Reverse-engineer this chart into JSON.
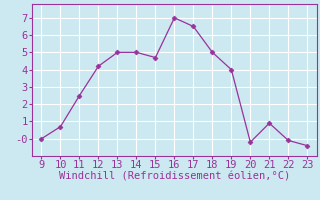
{
  "x": [
    9,
    10,
    11,
    12,
    13,
    14,
    15,
    16,
    17,
    18,
    19,
    20,
    21,
    22,
    23
  ],
  "y": [
    0,
    0.7,
    2.5,
    4.2,
    5.0,
    5.0,
    4.7,
    7.0,
    6.5,
    5.0,
    4.0,
    -0.2,
    0.9,
    -0.1,
    -0.4
  ],
  "line_color": "#993399",
  "marker": "D",
  "marker_size": 2.5,
  "xlabel": "Windchill (Refroidissement éolien,°C)",
  "xlim": [
    8.5,
    23.5
  ],
  "ylim": [
    -1.0,
    7.8
  ],
  "yticks": [
    0,
    1,
    2,
    3,
    4,
    5,
    6,
    7
  ],
  "ytick_labels": [
    "-0",
    "1",
    "2",
    "3",
    "4",
    "5",
    "6",
    "7"
  ],
  "xticks": [
    9,
    10,
    11,
    12,
    13,
    14,
    15,
    16,
    17,
    18,
    19,
    20,
    21,
    22,
    23
  ],
  "background_color": "#cce8f0",
  "grid_color": "#ffffff",
  "tick_color": "#993399",
  "label_color": "#993399",
  "font_size": 7.5
}
